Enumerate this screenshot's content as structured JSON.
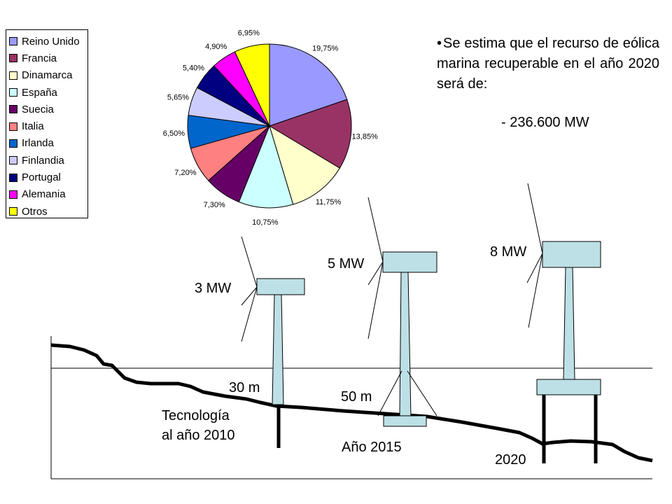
{
  "chart_data": {
    "type": "pie",
    "categories": [
      "Reino Unido",
      "Francia",
      "Dinamarca",
      "España",
      "Suecia",
      "Italia",
      "Irlanda",
      "Finlandia",
      "Portugal",
      "Alemania",
      "Otros"
    ],
    "values": [
      19.75,
      13.85,
      11.75,
      10.75,
      7.3,
      7.2,
      6.5,
      5.65,
      5.4,
      4.9,
      6.95
    ],
    "data_labels": [
      "19,75%",
      "13,85%",
      "11,75%",
      "10,75%",
      "7,30%",
      "7,20%",
      "6,50%",
      "5,65%",
      "5,40%",
      "4,90%",
      "6,95%"
    ],
    "colors": [
      "#9999ff",
      "#993366",
      "#ffffcc",
      "#ccffff",
      "#660066",
      "#ff8080",
      "#0066cc",
      "#ccccff",
      "#000080",
      "#ff00ff",
      "#ffff00"
    ],
    "legend_placement": "left"
  },
  "note": {
    "bullet": "•",
    "text": "Se estima que el recurso de eólica marina recuperable en el año 2020 será de:",
    "value": "- 236.600 MW"
  },
  "turbines": [
    {
      "power": "3 MW",
      "depth": "30 m",
      "year": "Tecnología\nal año 2010"
    },
    {
      "power": "5 MW",
      "depth": "50 m",
      "year": "Año 2015"
    },
    {
      "power": "8 MW",
      "depth": "",
      "year": "2020"
    }
  ],
  "colors": {
    "structure_fill": "#bde0e6",
    "seabed": "#000000"
  }
}
